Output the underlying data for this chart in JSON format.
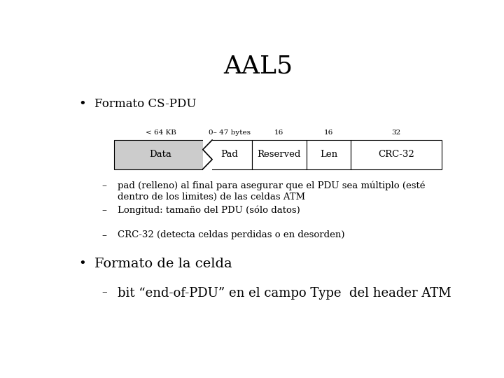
{
  "title": "AAL5",
  "title_fontsize": 26,
  "background_color": "#ffffff",
  "text_color": "#000000",
  "bullet1_header": "Formato CS-PDU",
  "bullet1_fontsize": 12,
  "diagram": {
    "fields": [
      "Data",
      "Pad",
      "Reserved",
      "Len",
      "CRC-32"
    ],
    "widths": [
      1.8,
      0.85,
      1.05,
      0.85,
      1.75
    ],
    "labels_above": [
      "< 64 KB",
      "0– 47 bytes",
      "16",
      "16",
      "32"
    ],
    "data_fill": "#cccccc",
    "other_fill": "#ffffff",
    "border_color": "#000000",
    "label_fontsize": 7.5,
    "field_fontsize": 9.5
  },
  "sub_bullets": [
    "pad (relleno) al final para asegurar que el PDU sea múltiplo (esté\ndentro de los limites) de las celdas ATM",
    "Longitud: tamaño del PDU (sólo datos)",
    "CRC-32 (detecta celdas perdidas o en desorden)"
  ],
  "sub_fontsize": 9.5,
  "bullet2_header": "Formato de la celda",
  "bullet2_fontsize": 14,
  "bullet2_sub": "bit “end-of-PDU” en el campo Type  del header ATM",
  "bullet2_sub_fontsize": 13,
  "font_family": "serif"
}
